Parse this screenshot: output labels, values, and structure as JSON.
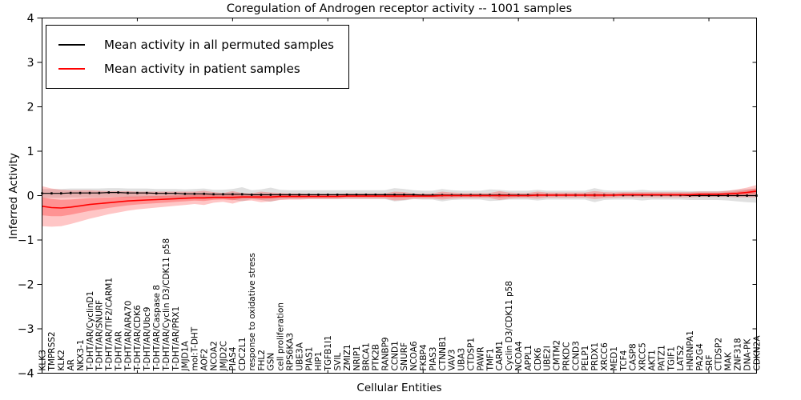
{
  "title": "Coregulation of Androgen receptor activity -- 1001 samples",
  "axes": {
    "xlabel": "Cellular Entities",
    "ylabel": "Inferred Activity"
  },
  "legend": {
    "items": [
      {
        "label": "Mean activity in all permuted samples",
        "color": "#000000"
      },
      {
        "label": "Mean activity in patient samples",
        "color": "#ff0000"
      }
    ]
  },
  "colors": {
    "permuted_line": "#000000",
    "permuted_band": "#999999",
    "patient_line": "#ff0000",
    "patient_band": "#ff3333",
    "axis": "#000000",
    "background": "#ffffff"
  },
  "chart_data": {
    "type": "line",
    "title": "Coregulation of Androgen receptor activity -- 1001 samples",
    "xlabel": "Cellular Entities",
    "ylabel": "Inferred Activity",
    "ylim": [
      -4,
      4
    ],
    "yticks": [
      4,
      3,
      2,
      1,
      0,
      -1,
      -2,
      -3,
      -4
    ],
    "grid": false,
    "legend_position": "upper left",
    "categories": [
      "KLK3",
      "TMPRSS2",
      "KLK2",
      "AR",
      "NKX3-1",
      "T-DHT/AR/CyclinD1",
      "T-DHT/AR/SNURF",
      "T-DHT/AR/TIF2/CARM1",
      "T-DHT/AR",
      "T-DHT/AR/ARA70",
      "T-DHT/AR/CDK6",
      "T-DHT/AR/Ubc9",
      "T-DHT/AR/Caspase 8",
      "T-DHT/AR/Cyclin D3/CDK11 p58",
      "T-DHT/AR/PRX1",
      "JMJD1A",
      "mol:T-DHT",
      "AOF2",
      "NCOA2",
      "JMJD2C",
      "PIAS4",
      "CDC2L1",
      "response to oxidative stress",
      "FHL2",
      "GSN",
      "cell proliferation",
      "RPS6KA3",
      "UBE3A",
      "PIAS1",
      "HIP1",
      "TGFB1I1",
      "SVIL",
      "ZMIZ1",
      "NRIP1",
      "BRCA1",
      "PTK2B",
      "RANBP9",
      "CCND1",
      "SNURF",
      "NCOA6",
      "FKBP4",
      "PIAS3",
      "CTNNB1",
      "VAV3",
      "UBA3",
      "CTDSP1",
      "PAWR",
      "TMF1",
      "CARM1",
      "Cyclin D3/CDK11 p58",
      "NCOA4",
      "APPL1",
      "CDK6",
      "UBE2I",
      "CMTM2",
      "PRKDC",
      "CCND3",
      "PELP1",
      "PRDX1",
      "XRCC6",
      "MED1",
      "TCF4",
      "CASP8",
      "XRCC5",
      "AKT1",
      "PATZ1",
      "TGIF1",
      "LATS2",
      "HNRNPA1",
      "PA2G4",
      "SRF",
      "CTDSP2",
      "MAK",
      "ZNF318",
      "DNA-PK",
      "CDKN2A"
    ],
    "series": [
      {
        "name": "Mean activity in all permuted samples",
        "color": "#000000",
        "band_color": "#999999",
        "values": [
          0.05,
          0.05,
          0.05,
          0.06,
          0.06,
          0.06,
          0.06,
          0.07,
          0.07,
          0.06,
          0.06,
          0.06,
          0.05,
          0.05,
          0.05,
          0.04,
          0.04,
          0.04,
          0.03,
          0.03,
          0.03,
          0.03,
          0.02,
          0.02,
          0.02,
          0.02,
          0.02,
          0.02,
          0.02,
          0.02,
          0.02,
          0.02,
          0.02,
          0.02,
          0.02,
          0.02,
          0.02,
          0.02,
          0.02,
          0.02,
          0.01,
          0.01,
          0.01,
          0.01,
          0.01,
          0.01,
          0.01,
          0.01,
          0.01,
          0.01,
          0.01,
          0.01,
          0.01,
          0.01,
          0.01,
          0.01,
          0.01,
          0.01,
          0.01,
          0.01,
          0.01,
          0.01,
          0.01,
          0.01,
          0.01,
          0.01,
          0.01,
          0.01,
          0.0,
          0.0,
          0.0,
          0.0,
          0.0,
          0.0,
          0.0,
          0.0
        ],
        "band_halfwidth": [
          0.1,
          0.1,
          0.1,
          0.1,
          0.1,
          0.1,
          0.1,
          0.1,
          0.1,
          0.1,
          0.1,
          0.1,
          0.1,
          0.1,
          0.1,
          0.1,
          0.11,
          0.12,
          0.1,
          0.1,
          0.12,
          0.16,
          0.1,
          0.12,
          0.16,
          0.11,
          0.1,
          0.1,
          0.1,
          0.1,
          0.1,
          0.1,
          0.1,
          0.1,
          0.1,
          0.1,
          0.1,
          0.15,
          0.13,
          0.1,
          0.1,
          0.1,
          0.14,
          0.11,
          0.1,
          0.1,
          0.1,
          0.13,
          0.12,
          0.1,
          0.1,
          0.1,
          0.12,
          0.1,
          0.1,
          0.1,
          0.1,
          0.1,
          0.16,
          0.11,
          0.1,
          0.1,
          0.1,
          0.12,
          0.1,
          0.1,
          0.1,
          0.1,
          0.1,
          0.1,
          0.1,
          0.1,
          0.11,
          0.13,
          0.15,
          0.16
        ]
      },
      {
        "name": "Mean activity in patient samples",
        "color": "#ff0000",
        "band_color": "#ff3333",
        "values": [
          -0.24,
          -0.27,
          -0.28,
          -0.26,
          -0.23,
          -0.2,
          -0.18,
          -0.16,
          -0.14,
          -0.12,
          -0.11,
          -0.1,
          -0.09,
          -0.08,
          -0.07,
          -0.06,
          -0.05,
          -0.05,
          -0.04,
          -0.04,
          -0.04,
          -0.03,
          -0.03,
          -0.03,
          -0.03,
          -0.02,
          -0.02,
          -0.02,
          -0.02,
          -0.02,
          -0.02,
          -0.02,
          -0.01,
          -0.01,
          -0.01,
          -0.01,
          -0.01,
          -0.01,
          -0.01,
          -0.01,
          -0.01,
          -0.01,
          0.0,
          0.0,
          0.0,
          0.0,
          0.0,
          0.0,
          0.0,
          0.0,
          0.0,
          0.0,
          0.01,
          0.01,
          0.01,
          0.01,
          0.01,
          0.01,
          0.01,
          0.01,
          0.01,
          0.02,
          0.02,
          0.02,
          0.02,
          0.02,
          0.02,
          0.02,
          0.02,
          0.03,
          0.03,
          0.03,
          0.04,
          0.05,
          0.07,
          0.1
        ],
        "band_halfwidth": [
          0.45,
          0.43,
          0.41,
          0.38,
          0.35,
          0.32,
          0.29,
          0.26,
          0.24,
          0.22,
          0.2,
          0.19,
          0.18,
          0.17,
          0.16,
          0.15,
          0.14,
          0.16,
          0.12,
          0.1,
          0.14,
          0.09,
          0.08,
          0.12,
          0.1,
          0.08,
          0.07,
          0.07,
          0.06,
          0.06,
          0.06,
          0.06,
          0.06,
          0.06,
          0.06,
          0.06,
          0.06,
          0.1,
          0.09,
          0.06,
          0.06,
          0.06,
          0.09,
          0.07,
          0.06,
          0.06,
          0.06,
          0.06,
          0.1,
          0.07,
          0.06,
          0.06,
          0.08,
          0.06,
          0.06,
          0.06,
          0.06,
          0.06,
          0.09,
          0.07,
          0.06,
          0.06,
          0.06,
          0.06,
          0.06,
          0.06,
          0.06,
          0.06,
          0.06,
          0.06,
          0.06,
          0.06,
          0.07,
          0.09,
          0.11,
          0.14
        ]
      }
    ]
  }
}
